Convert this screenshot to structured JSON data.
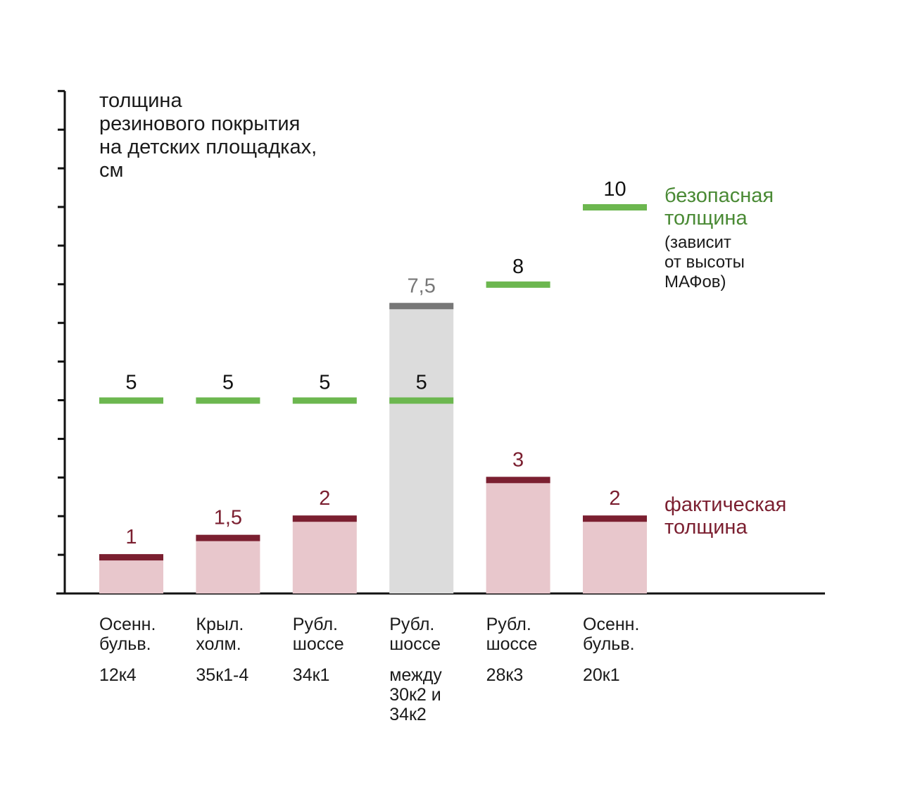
{
  "chart_data": {
    "type": "bar",
    "title_lines": [
      "толщина",
      "резинового покрытия",
      "на детских площадках,",
      "см"
    ],
    "ylim": [
      0,
      13
    ],
    "ytick_step": 1,
    "categories": [
      {
        "name_lines": [
          "Осенн.",
          "бульв."
        ],
        "address_lines": [
          "12к4"
        ]
      },
      {
        "name_lines": [
          "Крыл.",
          "холм."
        ],
        "address_lines": [
          "35к1-4"
        ]
      },
      {
        "name_lines": [
          "Рубл.",
          "шоссе"
        ],
        "address_lines": [
          "34к1"
        ]
      },
      {
        "name_lines": [
          "Рубл.",
          "шоссе"
        ],
        "address_lines": [
          "между",
          "30к2 и",
          "34к2"
        ]
      },
      {
        "name_lines": [
          "Рубл.",
          "шоссе"
        ],
        "address_lines": [
          "28к3"
        ]
      },
      {
        "name_lines": [
          "Осенн.",
          "бульв."
        ],
        "address_lines": [
          "20к1"
        ]
      }
    ],
    "series": [
      {
        "name": "фактическая толщина",
        "values": [
          1,
          1.5,
          2,
          7.5,
          3,
          2
        ],
        "labels": [
          "1",
          "1,5",
          "2",
          "7,5",
          "3",
          "2"
        ],
        "highlight_index": 3
      },
      {
        "name": "безопасная толщина",
        "values": [
          5,
          5,
          5,
          5,
          8,
          10
        ],
        "labels": [
          "5",
          "5",
          "5",
          "5",
          "8",
          "10"
        ]
      }
    ],
    "legend": {
      "safe_lines": [
        "безопасная",
        "толщина"
      ],
      "safe_note_lines": [
        "(зависит",
        " от высоты",
        " МАФов)"
      ],
      "actual_lines": [
        "фактическая",
        "толщина"
      ]
    },
    "colors": {
      "actual_fill": "#e8c7cc",
      "actual_top": "#7b1f30",
      "actual_label": "#7b1f30",
      "highlight_fill": "#dcdcdc",
      "highlight_top": "#777777",
      "highlight_label": "#777777",
      "safe_line": "#6cb74f",
      "safe_label": "#111111",
      "legend_safe": "#4a8a35",
      "legend_actual": "#7b1f30",
      "axis": "#111111"
    }
  }
}
